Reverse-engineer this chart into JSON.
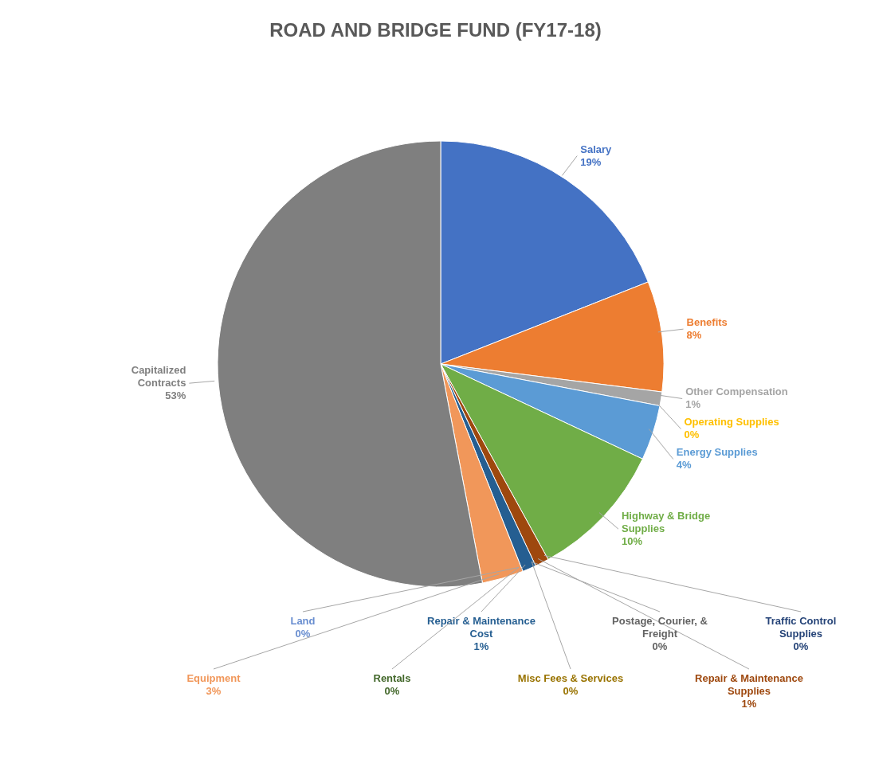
{
  "chart_data": {
    "type": "pie",
    "title": "ROAD AND BRIDGE FUND (FY17-18)",
    "categories": [
      "Salary",
      "Benefits",
      "Other Compensation",
      "Operating Supplies",
      "Energy Supplies",
      "Highway & Bridge Supplies",
      "Traffic Control Supplies",
      "Repair & Maintenance Supplies",
      "Postage, Courier, & Freight",
      "Misc Fees & Services",
      "Repair & Maintenance Cost",
      "Rentals",
      "Land",
      "Equipment",
      "Capitalized Contracts"
    ],
    "values": [
      19,
      8,
      1,
      0,
      4,
      10,
      0,
      1,
      0,
      0,
      1,
      0,
      0,
      3,
      53
    ],
    "value_labels": [
      "19%",
      "8%",
      "1%",
      "0%",
      "4%",
      "10%",
      "0%",
      "1%",
      "0%",
      "0%",
      "1%",
      "0%",
      "0%",
      "3%",
      "53%"
    ],
    "colors": [
      "#4472c4",
      "#ed7d31",
      "#a5a5a5",
      "#ffc000",
      "#5b9bd5",
      "#70ad47",
      "#264478",
      "#9e480e",
      "#636363",
      "#997300",
      "#255e91",
      "#43682b",
      "#698ed0",
      "#f1975a",
      "#7f7f7f"
    ]
  }
}
